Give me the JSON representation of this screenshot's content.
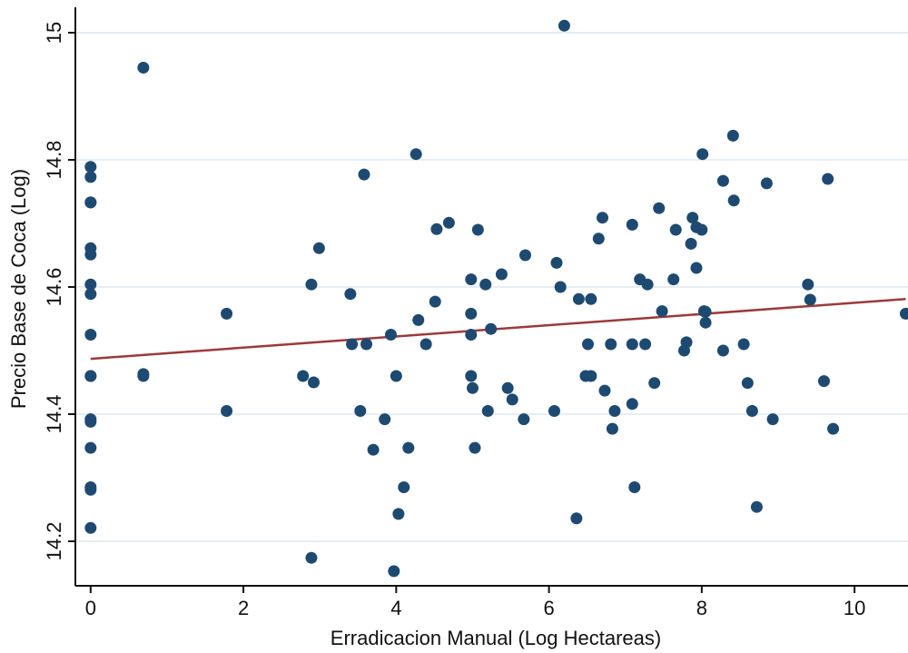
{
  "chart_data": {
    "type": "scatter",
    "xlabel": "Erradicacion Manual (Log Hectareas)",
    "ylabel": "Precio Base de Coca (Log)",
    "xlim": [
      -0.2,
      10.7
    ],
    "ylim": [
      14.13,
      15.04
    ],
    "xticks": [
      0,
      2,
      4,
      6,
      8,
      10
    ],
    "yticks": [
      14.2,
      14.4,
      14.6,
      14.8,
      15
    ],
    "grid": true,
    "point_color": "#1e4a72",
    "fit_color": "#9b3a3a",
    "fit_line": {
      "x": [
        0,
        10.67
      ],
      "y": [
        14.487,
        14.581
      ]
    },
    "points": [
      [
        0,
        14.789
      ],
      [
        0,
        14.773
      ],
      [
        0,
        14.733
      ],
      [
        0,
        14.733
      ],
      [
        0,
        14.661
      ],
      [
        0,
        14.651
      ],
      [
        0,
        14.604
      ],
      [
        0,
        14.589
      ],
      [
        0,
        14.525
      ],
      [
        0,
        14.46
      ],
      [
        0,
        14.46
      ],
      [
        0,
        14.392
      ],
      [
        0,
        14.388
      ],
      [
        0,
        14.347
      ],
      [
        0,
        14.285
      ],
      [
        0,
        14.281
      ],
      [
        0,
        14.221
      ],
      [
        0.69,
        14.945
      ],
      [
        0.69,
        14.463
      ],
      [
        0.69,
        14.46
      ],
      [
        1.78,
        14.558
      ],
      [
        1.78,
        14.405
      ],
      [
        2.78,
        14.46
      ],
      [
        2.89,
        14.604
      ],
      [
        2.89,
        14.174
      ],
      [
        2.92,
        14.45
      ],
      [
        2.99,
        14.661
      ],
      [
        3.4,
        14.589
      ],
      [
        3.42,
        14.51
      ],
      [
        3.53,
        14.405
      ],
      [
        3.58,
        14.777
      ],
      [
        3.61,
        14.51
      ],
      [
        3.7,
        14.344
      ],
      [
        3.85,
        14.392
      ],
      [
        3.93,
        14.525
      ],
      [
        3.97,
        14.153
      ],
      [
        4.0,
        14.46
      ],
      [
        4.03,
        14.243
      ],
      [
        4.1,
        14.285
      ],
      [
        4.16,
        14.347
      ],
      [
        4.26,
        14.809
      ],
      [
        4.29,
        14.548
      ],
      [
        4.39,
        14.51
      ],
      [
        4.51,
        14.577
      ],
      [
        4.53,
        14.691
      ],
      [
        4.69,
        14.701
      ],
      [
        4.98,
        14.612
      ],
      [
        4.98,
        14.558
      ],
      [
        4.98,
        14.525
      ],
      [
        4.98,
        14.46
      ],
      [
        5.0,
        14.441
      ],
      [
        5.03,
        14.347
      ],
      [
        5.07,
        14.69
      ],
      [
        5.17,
        14.604
      ],
      [
        5.2,
        14.405
      ],
      [
        5.24,
        14.534
      ],
      [
        5.38,
        14.62
      ],
      [
        5.46,
        14.441
      ],
      [
        5.52,
        14.423
      ],
      [
        5.67,
        14.392
      ],
      [
        5.69,
        14.65
      ],
      [
        6.07,
        14.405
      ],
      [
        6.1,
        14.638
      ],
      [
        6.15,
        14.6
      ],
      [
        6.2,
        15.011
      ],
      [
        6.36,
        14.236
      ],
      [
        6.39,
        14.581
      ],
      [
        6.48,
        14.46
      ],
      [
        6.51,
        14.51
      ],
      [
        6.55,
        14.581
      ],
      [
        6.55,
        14.46
      ],
      [
        6.65,
        14.676
      ],
      [
        6.7,
        14.709
      ],
      [
        6.73,
        14.437
      ],
      [
        6.81,
        14.51
      ],
      [
        6.83,
        14.377
      ],
      [
        6.86,
        14.405
      ],
      [
        7.09,
        14.698
      ],
      [
        7.09,
        14.51
      ],
      [
        7.09,
        14.416
      ],
      [
        7.12,
        14.285
      ],
      [
        7.19,
        14.612
      ],
      [
        7.26,
        14.51
      ],
      [
        7.29,
        14.604
      ],
      [
        7.38,
        14.449
      ],
      [
        7.44,
        14.724
      ],
      [
        7.48,
        14.562
      ],
      [
        7.63,
        14.612
      ],
      [
        7.66,
        14.69
      ],
      [
        7.77,
        14.5
      ],
      [
        7.8,
        14.513
      ],
      [
        7.86,
        14.668
      ],
      [
        7.88,
        14.709
      ],
      [
        7.93,
        14.63
      ],
      [
        7.93,
        14.694
      ],
      [
        8.0,
        14.69
      ],
      [
        8.01,
        14.809
      ],
      [
        8.03,
        14.562
      ],
      [
        8.05,
        14.544
      ],
      [
        8.05,
        14.561
      ],
      [
        8.28,
        14.767
      ],
      [
        8.28,
        14.5
      ],
      [
        8.41,
        14.838
      ],
      [
        8.42,
        14.736
      ],
      [
        8.55,
        14.51
      ],
      [
        8.6,
        14.449
      ],
      [
        8.66,
        14.405
      ],
      [
        8.72,
        14.254
      ],
      [
        8.85,
        14.763
      ],
      [
        8.93,
        14.392
      ],
      [
        9.39,
        14.604
      ],
      [
        9.42,
        14.58
      ],
      [
        9.6,
        14.452
      ],
      [
        9.65,
        14.77
      ],
      [
        9.72,
        14.377
      ],
      [
        10.67,
        14.558
      ]
    ]
  }
}
